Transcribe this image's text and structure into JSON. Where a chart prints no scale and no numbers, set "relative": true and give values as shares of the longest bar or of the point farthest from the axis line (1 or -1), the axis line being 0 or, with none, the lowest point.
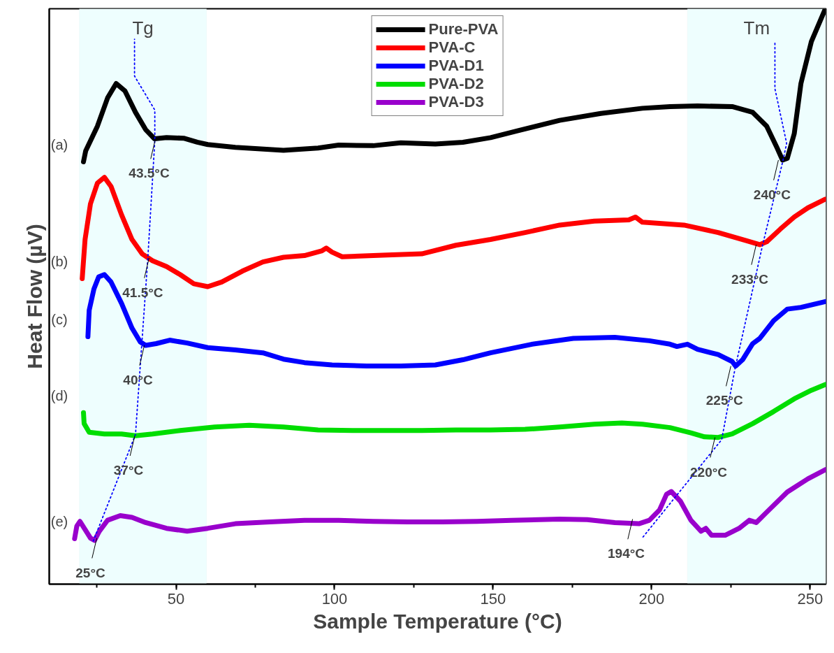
{
  "chart_data": {
    "type": "line",
    "relative": true,
    "xlabel": "Sample Temperature (°C)",
    "ylabel": "Heat Flow (µV)",
    "xlim": [
      10,
      255
    ],
    "xticks": [
      50,
      100,
      150,
      200,
      250
    ],
    "grid": false,
    "legend": "top",
    "line_style": "solid",
    "marker": "none",
    "series": [
      {
        "name": "Pure-PVA",
        "color": "#000000",
        "x": [
          20.8,
          21.5,
          25.2,
          28.4,
          31.1,
          33.9,
          37.2,
          40.4,
          43.2,
          47.0,
          52.4,
          56.7,
          60.0,
          68.7,
          83.9,
          94.8,
          101.3,
          112.2,
          120.9,
          131.8,
          140.5,
          149.2,
          157.9,
          171.0,
          184.0,
          197.1,
          205.8,
          214.5,
          225.4,
          231.9,
          236.3,
          239.5,
          241.3,
          242.8,
          245.0,
          247.1,
          250.4,
          254.8
        ],
        "values": [
          0.734,
          0.753,
          0.796,
          0.845,
          0.87,
          0.857,
          0.82,
          0.79,
          0.774,
          0.776,
          0.775,
          0.768,
          0.764,
          0.759,
          0.754,
          0.758,
          0.763,
          0.762,
          0.767,
          0.765,
          0.768,
          0.776,
          0.788,
          0.806,
          0.818,
          0.827,
          0.83,
          0.831,
          0.83,
          0.82,
          0.796,
          0.759,
          0.737,
          0.74,
          0.783,
          0.87,
          0.943,
          1.0
        ]
      },
      {
        "name": "PVA-C",
        "color": "#ff0000",
        "x": [
          20.4,
          21.3,
          23.0,
          25.2,
          27.4,
          29.5,
          32.8,
          36.1,
          39.3,
          42.6,
          47.0,
          51.3,
          55.6,
          60.0,
          64.4,
          70.9,
          77.4,
          83.9,
          90.5,
          95.9,
          97.4,
          99.2,
          102.4,
          116.6,
          127.5,
          138.3,
          149.2,
          160.1,
          171.0,
          181.9,
          192.8,
          194.9,
          197.1,
          210.2,
          221.0,
          229.8,
          234.1,
          236.3,
          240.6,
          245.0,
          249.3,
          254.8
        ],
        "values": [
          0.531,
          0.599,
          0.661,
          0.697,
          0.707,
          0.691,
          0.642,
          0.599,
          0.574,
          0.562,
          0.552,
          0.538,
          0.522,
          0.517,
          0.525,
          0.544,
          0.56,
          0.568,
          0.571,
          0.579,
          0.584,
          0.577,
          0.569,
          0.572,
          0.574,
          0.589,
          0.599,
          0.611,
          0.624,
          0.631,
          0.633,
          0.638,
          0.629,
          0.624,
          0.611,
          0.597,
          0.59,
          0.595,
          0.617,
          0.638,
          0.654,
          0.669
        ]
      },
      {
        "name": "PVA-D1",
        "color": "#0000ff",
        "x": [
          22.2,
          22.6,
          24.1,
          25.6,
          27.4,
          29.5,
          32.8,
          36.1,
          38.7,
          40.4,
          43.7,
          48.0,
          53.5,
          60.0,
          68.7,
          77.4,
          83.9,
          90.5,
          99.2,
          110.1,
          120.9,
          131.8,
          140.5,
          149.2,
          162.3,
          175.3,
          188.4,
          199.3,
          205.8,
          208.0,
          211.3,
          214.5,
          221.0,
          225.4,
          226.5,
          228.7,
          231.9,
          234.1,
          238.5,
          242.8,
          247.1,
          254.8
        ],
        "values": [
          0.43,
          0.476,
          0.513,
          0.534,
          0.538,
          0.525,
          0.488,
          0.445,
          0.421,
          0.415,
          0.418,
          0.424,
          0.419,
          0.411,
          0.407,
          0.402,
          0.391,
          0.385,
          0.381,
          0.379,
          0.379,
          0.381,
          0.39,
          0.402,
          0.417,
          0.427,
          0.429,
          0.423,
          0.417,
          0.413,
          0.417,
          0.408,
          0.399,
          0.387,
          0.379,
          0.39,
          0.418,
          0.427,
          0.458,
          0.478,
          0.481,
          0.491
        ]
      },
      {
        "name": "PVA-D2",
        "color": "#00dd00",
        "x": [
          20.8,
          21.0,
          22.6,
          27.4,
          32.8,
          37.2,
          42.6,
          51.3,
          62.2,
          73.1,
          83.9,
          94.8,
          105.7,
          116.6,
          127.5,
          138.3,
          149.2,
          160.1,
          171.0,
          181.9,
          190.6,
          197.1,
          205.8,
          212.4,
          216.7,
          221.0,
          225.4,
          231.9,
          238.5,
          245.0,
          250.4,
          254.8
        ],
        "values": [
          0.298,
          0.279,
          0.264,
          0.261,
          0.261,
          0.258,
          0.261,
          0.267,
          0.273,
          0.276,
          0.273,
          0.268,
          0.267,
          0.267,
          0.267,
          0.268,
          0.268,
          0.269,
          0.273,
          0.278,
          0.28,
          0.278,
          0.272,
          0.263,
          0.256,
          0.255,
          0.261,
          0.279,
          0.3,
          0.322,
          0.337,
          0.347
        ]
      },
      {
        "name": "PVA-D3",
        "color": "#9900cc",
        "x": [
          18.0,
          18.7,
          19.7,
          21.3,
          23.0,
          24.3,
          25.8,
          28.4,
          32.4,
          36.1,
          40.4,
          47.0,
          53.5,
          60.0,
          68.7,
          79.6,
          90.5,
          101.3,
          112.2,
          123.1,
          133.9,
          144.9,
          155.8,
          171.0,
          179.7,
          188.4,
          196.0,
          199.3,
          202.5,
          204.7,
          206.2,
          209.1,
          212.4,
          215.6,
          217.1,
          218.9,
          223.2,
          227.6,
          230.8,
          233.0,
          236.3,
          242.8,
          249.3,
          254.8
        ],
        "values": [
          0.079,
          0.101,
          0.109,
          0.095,
          0.08,
          0.076,
          0.092,
          0.111,
          0.119,
          0.116,
          0.107,
          0.097,
          0.092,
          0.097,
          0.105,
          0.108,
          0.111,
          0.111,
          0.109,
          0.108,
          0.108,
          0.109,
          0.111,
          0.113,
          0.112,
          0.107,
          0.105,
          0.111,
          0.129,
          0.156,
          0.161,
          0.144,
          0.111,
          0.092,
          0.097,
          0.085,
          0.085,
          0.097,
          0.111,
          0.107,
          0.125,
          0.16,
          0.183,
          0.199
        ]
      },
      {
        "color": "#0000ff",
        "line_style": "dotted",
        "x": [
          23.9,
          37.2,
          39.1,
          41.1,
          43.3,
          43.3,
          36.9,
          36.9
        ],
        "values": [
          0.075,
          0.26,
          0.41,
          0.567,
          0.771,
          0.824,
          0.883,
          0.947
        ]
      },
      {
        "color": "#0000ff",
        "line_style": "dotted",
        "x": [
          197.3,
          222.1,
          226.3,
          235.0,
          241.3,
          242.6,
          238.9,
          238.9
        ],
        "values": [
          0.082,
          0.251,
          0.374,
          0.589,
          0.733,
          0.766,
          0.861,
          0.943
        ]
      }
    ],
    "bands": [
      {
        "axis": "x",
        "from": 19.5,
        "to": 59.6,
        "label": "Tg",
        "color": "#eefefe"
      },
      {
        "axis": "x",
        "from": 211.3,
        "to": 255,
        "label": "Tm",
        "color": "#eefefe"
      }
    ],
    "annotations": [
      "(a)",
      "(b)",
      "(c)",
      "(d)",
      "(e)",
      {
        "text": "43.5°C",
        "x": 43.5,
        "y": 0.774
      },
      {
        "text": "41.5°C",
        "x": 41.5,
        "y": 0.567
      },
      {
        "text": "40°C",
        "x": 40,
        "y": 0.415
      },
      {
        "text": "37°C",
        "x": 37,
        "y": 0.258
      },
      {
        "text": "25°C",
        "x": 25,
        "y": 0.08
      },
      {
        "text": "240°C",
        "x": 240,
        "y": 0.737
      },
      {
        "text": "233°C",
        "x": 233,
        "y": 0.59
      },
      {
        "text": "225°C",
        "x": 225,
        "y": 0.379
      },
      {
        "text": "220°C",
        "x": 220,
        "y": 0.255
      },
      {
        "text": "194°C",
        "x": 194,
        "y": 0.113
      }
    ]
  }
}
